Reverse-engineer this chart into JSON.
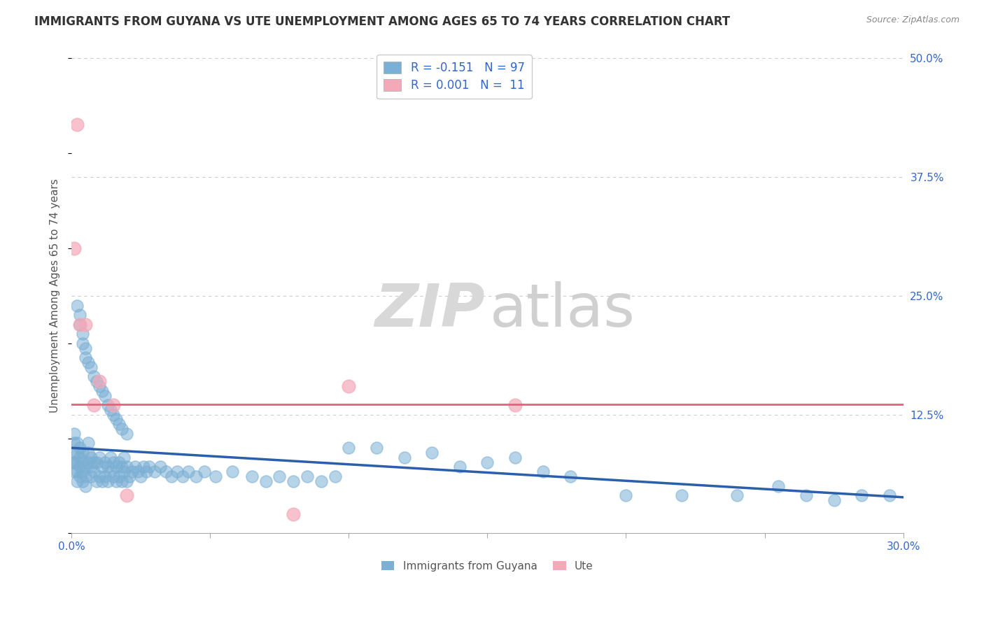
{
  "title": "IMMIGRANTS FROM GUYANA VS UTE UNEMPLOYMENT AMONG AGES 65 TO 74 YEARS CORRELATION CHART",
  "source_text": "Source: ZipAtlas.com",
  "ylabel": "Unemployment Among Ages 65 to 74 years",
  "legend_labels": [
    "Immigrants from Guyana",
    "Ute"
  ],
  "legend_R": [
    -0.151,
    0.001
  ],
  "legend_N": [
    97,
    11
  ],
  "xlim": [
    0.0,
    0.3
  ],
  "ylim": [
    0.0,
    0.5
  ],
  "yticks_right": [
    0.0,
    0.125,
    0.25,
    0.375,
    0.5
  ],
  "yticklabels_right": [
    "",
    "12.5%",
    "25.0%",
    "37.5%",
    "50.0%"
  ],
  "grid_color": "#cccccc",
  "background_color": "#ffffff",
  "blue_color": "#7bafd4",
  "pink_color": "#f4a9b8",
  "blue_line_color": "#2b5fac",
  "pink_line_color": "#e8607a",
  "watermark_zip_color": "#d8d8d8",
  "watermark_atlas_color": "#d0d0d0",
  "blue_scatter_x": [
    0.0005,
    0.001,
    0.001,
    0.001,
    0.001,
    0.001,
    0.002,
    0.002,
    0.002,
    0.002,
    0.002,
    0.003,
    0.003,
    0.003,
    0.003,
    0.004,
    0.004,
    0.004,
    0.004,
    0.005,
    0.005,
    0.005,
    0.006,
    0.006,
    0.006,
    0.007,
    0.007,
    0.007,
    0.008,
    0.008,
    0.009,
    0.009,
    0.01,
    0.01,
    0.011,
    0.011,
    0.012,
    0.012,
    0.013,
    0.013,
    0.014,
    0.014,
    0.015,
    0.015,
    0.016,
    0.016,
    0.017,
    0.017,
    0.018,
    0.018,
    0.019,
    0.019,
    0.02,
    0.02,
    0.021,
    0.022,
    0.023,
    0.024,
    0.025,
    0.026,
    0.027,
    0.028,
    0.03,
    0.032,
    0.034,
    0.036,
    0.038,
    0.04,
    0.042,
    0.045,
    0.048,
    0.052,
    0.058,
    0.065,
    0.07,
    0.075,
    0.08,
    0.085,
    0.09,
    0.095,
    0.1,
    0.11,
    0.12,
    0.13,
    0.14,
    0.15,
    0.16,
    0.17,
    0.18,
    0.2,
    0.22,
    0.24,
    0.255,
    0.265,
    0.275,
    0.285,
    0.295
  ],
  "blue_scatter_y": [
    0.075,
    0.065,
    0.075,
    0.085,
    0.095,
    0.105,
    0.055,
    0.065,
    0.075,
    0.085,
    0.095,
    0.06,
    0.07,
    0.08,
    0.09,
    0.055,
    0.065,
    0.075,
    0.085,
    0.05,
    0.06,
    0.07,
    0.075,
    0.085,
    0.095,
    0.06,
    0.07,
    0.08,
    0.065,
    0.075,
    0.055,
    0.075,
    0.06,
    0.08,
    0.055,
    0.07,
    0.06,
    0.075,
    0.055,
    0.07,
    0.065,
    0.08,
    0.06,
    0.075,
    0.055,
    0.07,
    0.06,
    0.075,
    0.055,
    0.07,
    0.065,
    0.08,
    0.055,
    0.07,
    0.06,
    0.065,
    0.07,
    0.065,
    0.06,
    0.07,
    0.065,
    0.07,
    0.065,
    0.07,
    0.065,
    0.06,
    0.065,
    0.06,
    0.065,
    0.06,
    0.065,
    0.06,
    0.065,
    0.06,
    0.055,
    0.06,
    0.055,
    0.06,
    0.055,
    0.06,
    0.09,
    0.09,
    0.08,
    0.085,
    0.07,
    0.075,
    0.08,
    0.065,
    0.06,
    0.04,
    0.04,
    0.04,
    0.05,
    0.04,
    0.035,
    0.04,
    0.04
  ],
  "blue_scatter_y_extra": [
    0.24,
    0.23,
    0.22,
    0.21,
    0.2,
    0.195,
    0.185,
    0.18,
    0.175,
    0.165,
    0.16,
    0.155,
    0.15,
    0.145,
    0.135,
    0.13,
    0.125,
    0.12,
    0.115,
    0.11,
    0.105
  ],
  "blue_scatter_x_extra": [
    0.002,
    0.003,
    0.003,
    0.004,
    0.004,
    0.005,
    0.005,
    0.006,
    0.007,
    0.008,
    0.009,
    0.01,
    0.011,
    0.012,
    0.013,
    0.014,
    0.015,
    0.016,
    0.017,
    0.018,
    0.02
  ],
  "pink_scatter_x": [
    0.001,
    0.002,
    0.003,
    0.005,
    0.008,
    0.01,
    0.015,
    0.02,
    0.08,
    0.1,
    0.16
  ],
  "pink_scatter_y": [
    0.3,
    0.43,
    0.22,
    0.22,
    0.135,
    0.16,
    0.135,
    0.04,
    0.02,
    0.155,
    0.135
  ],
  "blue_trend_x": [
    0.0,
    0.3
  ],
  "blue_trend_y": [
    0.09,
    0.038
  ],
  "pink_trend_x": [
    0.0,
    0.3
  ],
  "pink_trend_y": [
    0.136,
    0.136
  ]
}
